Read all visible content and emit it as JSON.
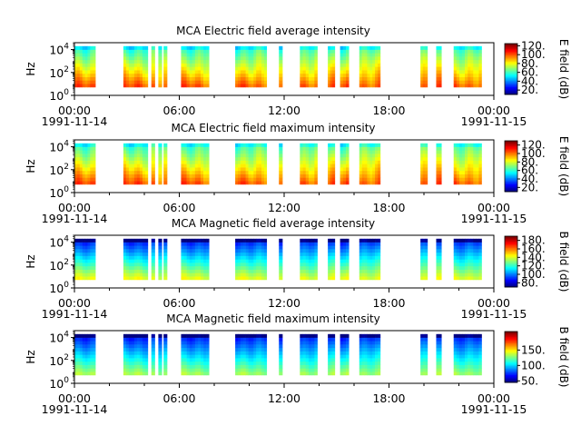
{
  "chart_data": [
    {
      "type": "heatmap",
      "title": "MCA  Electric field average intensity",
      "ylabel": "Hz",
      "yscale": "log",
      "ylim": [
        1,
        40000
      ],
      "yticks": [
        {
          "value": 1,
          "base": "10",
          "exp": "0"
        },
        {
          "value": 100,
          "base": "10",
          "exp": "2"
        },
        {
          "value": 10000,
          "base": "10",
          "exp": "4"
        }
      ],
      "xticks": [
        {
          "hour": 0,
          "label": "00:00",
          "date": "1991-11-14"
        },
        {
          "hour": 6,
          "label": "06:00"
        },
        {
          "hour": 12,
          "label": "12:00"
        },
        {
          "hour": 18,
          "label": "18:00"
        },
        {
          "hour": 24,
          "label": "00:00",
          "date": "1991-11-15"
        }
      ],
      "colorbar": {
        "label": "E field (dB)",
        "range": [
          10,
          125
        ],
        "ticks": [
          20,
          40,
          60,
          80,
          100,
          120
        ],
        "tick_labels": [
          "20.",
          "40.",
          "60.",
          "80.",
          "100.",
          "120."
        ]
      },
      "profile": "electric-avg",
      "segments": [
        [
          0,
          1.2
        ],
        [
          2.8,
          4.2
        ],
        [
          4.4,
          4.6
        ],
        [
          4.8,
          5
        ],
        [
          5.1,
          5.3
        ],
        [
          6.1,
          7.7
        ],
        [
          9.2,
          11
        ],
        [
          11.7,
          11.9
        ],
        [
          12.9,
          13.9
        ],
        [
          14.5,
          14.9
        ],
        [
          15.2,
          15.7
        ],
        [
          16.3,
          17.5
        ],
        [
          19.8,
          20.2
        ],
        [
          20.7,
          21
        ],
        [
          21.7,
          23.3
        ]
      ]
    },
    {
      "type": "heatmap",
      "title": "MCA  Electric field maximum intensity",
      "ylabel": "Hz",
      "yscale": "log",
      "ylim": [
        1,
        40000
      ],
      "yticks": [
        {
          "value": 1,
          "base": "10",
          "exp": "0"
        },
        {
          "value": 100,
          "base": "10",
          "exp": "2"
        },
        {
          "value": 10000,
          "base": "10",
          "exp": "4"
        }
      ],
      "xticks": [
        {
          "hour": 0,
          "label": "00:00",
          "date": "1991-11-14"
        },
        {
          "hour": 6,
          "label": "06:00"
        },
        {
          "hour": 12,
          "label": "12:00"
        },
        {
          "hour": 18,
          "label": "18:00"
        },
        {
          "hour": 24,
          "label": "00:00",
          "date": "1991-11-15"
        }
      ],
      "colorbar": {
        "label": "E field (dB)",
        "range": [
          10,
          130
        ],
        "ticks": [
          20,
          40,
          60,
          80,
          100,
          120
        ],
        "tick_labels": [
          "20.",
          "40.",
          "60.",
          "80.",
          "100.",
          "120."
        ]
      },
      "profile": "electric-max",
      "segments": [
        [
          0,
          1.2
        ],
        [
          2.8,
          4.2
        ],
        [
          4.4,
          4.6
        ],
        [
          4.8,
          5
        ],
        [
          5.1,
          5.3
        ],
        [
          6.1,
          7.7
        ],
        [
          9.2,
          11
        ],
        [
          11.7,
          11.9
        ],
        [
          12.9,
          13.9
        ],
        [
          14.5,
          14.9
        ],
        [
          15.2,
          15.7
        ],
        [
          16.3,
          17.5
        ],
        [
          19.8,
          20.2
        ],
        [
          20.7,
          21
        ],
        [
          21.7,
          23.3
        ]
      ]
    },
    {
      "type": "heatmap",
      "title": "MCA  Magnetic field average intensity",
      "ylabel": "Hz",
      "yscale": "log",
      "ylim": [
        1,
        40000
      ],
      "yticks": [
        {
          "value": 1,
          "base": "10",
          "exp": "0"
        },
        {
          "value": 100,
          "base": "10",
          "exp": "2"
        },
        {
          "value": 10000,
          "base": "10",
          "exp": "4"
        }
      ],
      "xticks": [
        {
          "hour": 0,
          "label": "00:00",
          "date": "1991-11-14"
        },
        {
          "hour": 6,
          "label": "06:00"
        },
        {
          "hour": 12,
          "label": "12:00"
        },
        {
          "hour": 18,
          "label": "18:00"
        },
        {
          "hour": 24,
          "label": "00:00",
          "date": "1991-11-15"
        }
      ],
      "colorbar": {
        "label": "B field (dB)",
        "range": [
          70,
          190
        ],
        "ticks": [
          80,
          100,
          120,
          140,
          160,
          180
        ],
        "tick_labels": [
          "80.",
          "100.",
          "120.",
          "140.",
          "160.",
          "180."
        ]
      },
      "profile": "magnetic-avg",
      "segments": [
        [
          0,
          1.2
        ],
        [
          2.8,
          4.2
        ],
        [
          4.4,
          4.6
        ],
        [
          4.8,
          5
        ],
        [
          5.1,
          5.3
        ],
        [
          6.1,
          7.7
        ],
        [
          9.2,
          11
        ],
        [
          11.7,
          11.9
        ],
        [
          12.9,
          13.9
        ],
        [
          14.5,
          14.9
        ],
        [
          15.2,
          15.7
        ],
        [
          16.3,
          17.5
        ],
        [
          19.8,
          20.2
        ],
        [
          20.7,
          21
        ],
        [
          21.7,
          23.3
        ]
      ]
    },
    {
      "type": "heatmap",
      "title": "MCA  Magnetic field maximum intensity",
      "ylabel": "Hz",
      "yscale": "log",
      "ylim": [
        1,
        40000
      ],
      "yticks": [
        {
          "value": 1,
          "base": "10",
          "exp": "0"
        },
        {
          "value": 100,
          "base": "10",
          "exp": "2"
        },
        {
          "value": 10000,
          "base": "10",
          "exp": "4"
        }
      ],
      "xticks": [
        {
          "hour": 0,
          "label": "00:00",
          "date": "1991-11-14"
        },
        {
          "hour": 6,
          "label": "06:00"
        },
        {
          "hour": 12,
          "label": "12:00"
        },
        {
          "hour": 18,
          "label": "18:00"
        },
        {
          "hour": 24,
          "label": "00:00",
          "date": "1991-11-15"
        }
      ],
      "colorbar": {
        "label": "B field (dB)",
        "range": [
          45,
          210
        ],
        "ticks": [
          50,
          100,
          150
        ],
        "tick_labels": [
          "50.",
          "100.",
          "150."
        ]
      },
      "profile": "magnetic-max",
      "segments": [
        [
          0,
          1.2
        ],
        [
          2.8,
          4.2
        ],
        [
          4.4,
          4.6
        ],
        [
          4.8,
          5
        ],
        [
          5.1,
          5.3
        ],
        [
          6.1,
          7.7
        ],
        [
          9.2,
          11
        ],
        [
          11.7,
          11.9
        ],
        [
          12.9,
          13.9
        ],
        [
          14.5,
          14.9
        ],
        [
          15.2,
          15.7
        ],
        [
          16.3,
          17.5
        ],
        [
          19.8,
          20.2
        ],
        [
          20.7,
          21
        ],
        [
          21.7,
          23.3
        ]
      ]
    }
  ]
}
